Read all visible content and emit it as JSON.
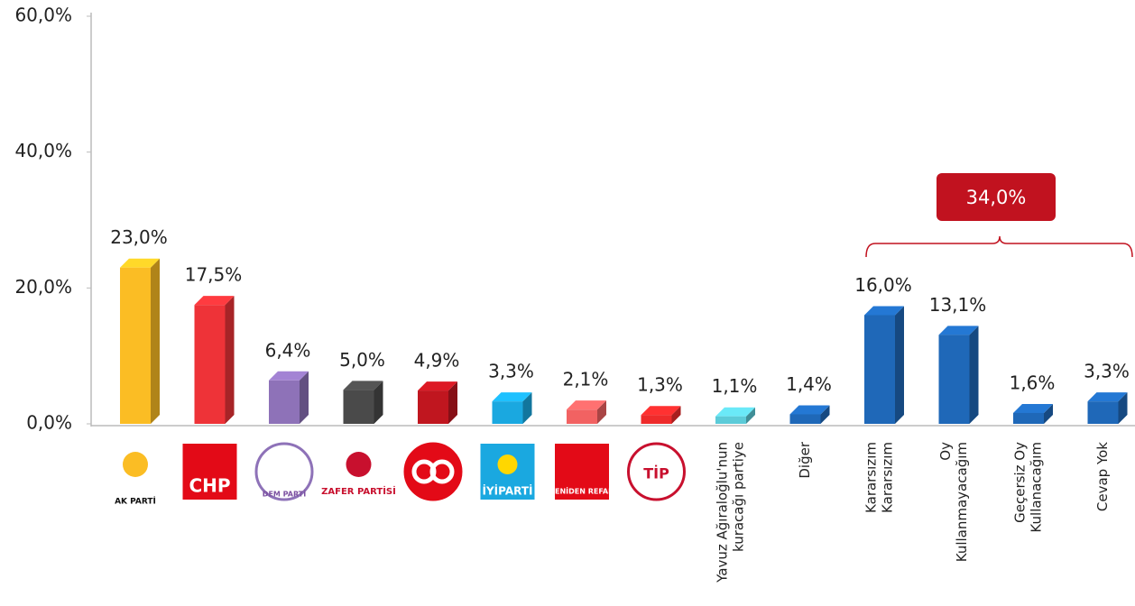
{
  "chart_data": {
    "type": "bar3d",
    "categories": [
      "AK PARTİ",
      "CHP",
      "DEM PARTİ",
      "ZAFER PARTİSİ",
      null,
      "İYİPARTİ",
      "YENİDEN REFAH",
      "TİP",
      [
        "Yavuz Ağıraloğlu'nun",
        "kuracağı partiye"
      ],
      [
        "Diğer"
      ],
      [
        "Kararsızım",
        "Kararsızım"
      ],
      [
        "Oy",
        "Kullanmayacağım"
      ],
      [
        "Geçersiz Oy",
        "Kullanacağım"
      ],
      [
        "Cevap Yok"
      ]
    ],
    "values": [
      23.0,
      17.5,
      6.4,
      5.0,
      4.9,
      3.3,
      2.1,
      1.3,
      1.1,
      1.4,
      16.0,
      13.1,
      1.6,
      3.3
    ],
    "value_labels": [
      "23,0%",
      "17,5%",
      "6,4%",
      "5,0%",
      "4,9%",
      "3,3%",
      "2,1%",
      "1,3%",
      "1,1%",
      "1,4%",
      "16,0%",
      "13,1%",
      "1,6%",
      "3,3%"
    ],
    "colors": [
      "#fbbd24",
      "#ee3338",
      "#8e72b8",
      "#4a4a4a",
      "#c0161f",
      "#1aa8e0",
      "#f26262",
      "#ee2b2b",
      "#5ccbd8",
      "#1f68b8",
      "#1f68b8",
      "#1f68b8",
      "#1f68b8",
      "#1f68b8"
    ],
    "ylim": [
      0,
      60
    ],
    "yticks": [
      {
        "value": 0,
        "label": "0,0%"
      },
      {
        "value": 20,
        "label": "20,0%"
      },
      {
        "value": 40,
        "label": "40,0%"
      },
      {
        "value": 60,
        "label": "60,0%"
      }
    ],
    "annotation": {
      "label": "34,0%",
      "value": 34
    }
  }
}
